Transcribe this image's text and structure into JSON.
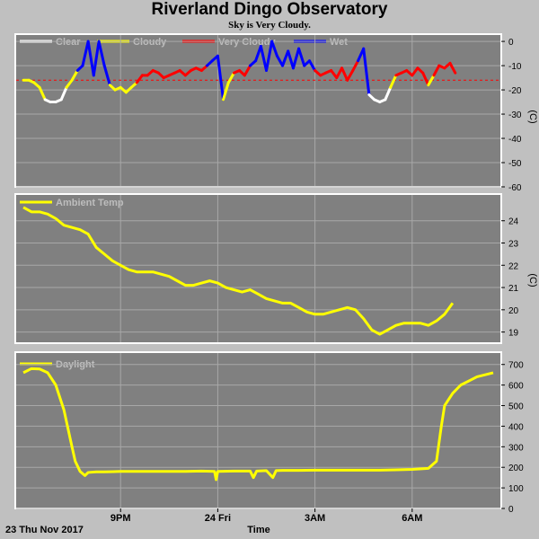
{
  "header": {
    "title": "Riverland Dingo Observatory",
    "subtitle": "Sky is Very Cloudy."
  },
  "colors": {
    "plot_bg": "#808080",
    "frame": "#ffffff",
    "grid": "#a8a8a8",
    "clear": "#ffffff",
    "cloudy": "#ffff00",
    "very_cloudy": "#ff0000",
    "wet": "#0000ff",
    "temp": "#ffff00",
    "daylight": "#ffff00"
  },
  "footer": {
    "date_label": "23 Thu Nov 2017",
    "time_label": "Time"
  },
  "chart_data": [
    {
      "type": "line",
      "title": "",
      "ylabel": "(C)",
      "ylim": [
        -60,
        3
      ],
      "yticks": [
        0,
        -10,
        -20,
        -30,
        -40,
        -50,
        -60
      ],
      "grid": true,
      "legend": [
        "Clear",
        "Cloudy",
        "Very Cloudy",
        "Wet"
      ],
      "threshold": -16,
      "x": [
        18.0,
        18.17,
        18.33,
        18.5,
        18.67,
        18.83,
        19.0,
        19.17,
        19.33,
        19.5,
        19.67,
        19.83,
        20.0,
        20.17,
        20.33,
        20.5,
        20.67,
        20.83,
        21.0,
        21.17,
        21.33,
        21.5,
        21.67,
        21.83,
        22.0,
        22.17,
        22.33,
        22.5,
        22.67,
        22.83,
        23.0,
        23.17,
        23.33,
        23.5,
        23.67,
        23.83,
        24.0,
        24.17,
        24.33,
        24.5,
        24.67,
        24.83,
        25.0,
        25.17,
        25.33,
        25.5,
        25.67,
        25.83,
        26.0,
        26.17,
        26.33,
        26.5,
        26.67,
        26.83,
        27.0,
        27.17,
        27.33,
        27.5,
        27.67,
        27.83,
        28.0,
        28.17,
        28.33,
        28.5,
        28.67,
        28.83,
        29.0,
        29.17,
        29.33,
        29.5,
        29.67,
        29.83,
        30.0,
        30.17,
        30.33,
        30.5,
        30.67,
        30.83,
        31.0,
        31.17,
        31.33
      ],
      "y": [
        -16,
        -16,
        -17,
        -19,
        -24,
        -25,
        -25,
        -24,
        -19,
        -16,
        -12,
        -10,
        0,
        -14,
        0,
        -10,
        -18,
        -20,
        -19,
        -21,
        -19,
        -17,
        -14,
        -14,
        -12,
        -13,
        -15,
        -14,
        -13,
        -12,
        -14,
        -12,
        -11,
        -12,
        -10,
        -8,
        -6,
        -24,
        -17,
        -13,
        -12,
        -14,
        -10,
        -8,
        -2,
        -12,
        0,
        -6,
        -10,
        -4,
        -11,
        -3,
        -10,
        -8,
        -12,
        -14,
        -13,
        -12,
        -15,
        -11,
        -16,
        -12,
        -8,
        -3,
        -22,
        -24,
        -25,
        -24,
        -19,
        -14,
        -13,
        -12,
        -14,
        -11,
        -13,
        -18,
        -14,
        -10,
        -11,
        -9,
        -13
      ],
      "condition": [
        "cloudy",
        "cloudy",
        "cloudy",
        "cloudy",
        "clear",
        "clear",
        "clear",
        "clear",
        "cloudy",
        "cloudy",
        "wet",
        "wet",
        "wet",
        "wet",
        "wet",
        "wet",
        "cloudy",
        "cloudy",
        "cloudy",
        "cloudy",
        "cloudy",
        "very_cloudy",
        "very_cloudy",
        "very_cloudy",
        "very_cloudy",
        "very_cloudy",
        "very_cloudy",
        "very_cloudy",
        "very_cloudy",
        "very_cloudy",
        "very_cloudy",
        "very_cloudy",
        "very_cloudy",
        "very_cloudy",
        "wet",
        "wet",
        "wet",
        "cloudy",
        "cloudy",
        "very_cloudy",
        "very_cloudy",
        "very_cloudy",
        "wet",
        "wet",
        "wet",
        "wet",
        "wet",
        "wet",
        "wet",
        "wet",
        "wet",
        "wet",
        "wet",
        "wet",
        "very_cloudy",
        "very_cloudy",
        "very_cloudy",
        "very_cloudy",
        "very_cloudy",
        "very_cloudy",
        "very_cloudy",
        "very_cloudy",
        "wet",
        "wet",
        "clear",
        "clear",
        "clear",
        "clear",
        "cloudy",
        "very_cloudy",
        "very_cloudy",
        "very_cloudy",
        "very_cloudy",
        "very_cloudy",
        "very_cloudy",
        "cloudy",
        "very_cloudy",
        "very_cloudy",
        "very_cloudy",
        "very_cloudy",
        "very_cloudy"
      ]
    },
    {
      "type": "line",
      "title": "",
      "ylabel": "(C)",
      "ylim": [
        18.5,
        25.2
      ],
      "yticks": [
        19,
        20,
        21,
        22,
        23,
        24
      ],
      "grid": true,
      "legend": [
        "Ambient Temp"
      ],
      "x": [
        18.0,
        18.25,
        18.5,
        18.75,
        19.0,
        19.25,
        19.5,
        19.75,
        20.0,
        20.25,
        20.5,
        20.75,
        21.0,
        21.25,
        21.5,
        21.75,
        22.0,
        22.25,
        22.5,
        22.75,
        23.0,
        23.25,
        23.5,
        23.75,
        24.0,
        24.25,
        24.5,
        24.75,
        25.0,
        25.25,
        25.5,
        25.75,
        26.0,
        26.25,
        26.5,
        26.75,
        27.0,
        27.25,
        27.5,
        27.75,
        28.0,
        28.25,
        28.5,
        28.75,
        29.0,
        29.25,
        29.5,
        29.75,
        30.0,
        30.25,
        30.5,
        30.75,
        31.0,
        31.25
      ],
      "y": [
        24.6,
        24.4,
        24.4,
        24.3,
        24.1,
        23.8,
        23.7,
        23.6,
        23.4,
        22.8,
        22.5,
        22.2,
        22.0,
        21.8,
        21.7,
        21.7,
        21.7,
        21.6,
        21.5,
        21.3,
        21.1,
        21.1,
        21.2,
        21.3,
        21.2,
        21.0,
        20.9,
        20.8,
        20.9,
        20.7,
        20.5,
        20.4,
        20.3,
        20.3,
        20.1,
        19.9,
        19.8,
        19.8,
        19.9,
        20.0,
        20.1,
        20.0,
        19.6,
        19.1,
        18.9,
        19.1,
        19.3,
        19.4,
        19.4,
        19.4,
        19.3,
        19.5,
        19.8,
        20.3
      ]
    },
    {
      "type": "line",
      "title": "",
      "ylabel": "",
      "ylim": [
        0,
        760
      ],
      "yticks": [
        0,
        100,
        200,
        300,
        400,
        500,
        600,
        700
      ],
      "grid": true,
      "legend": [
        "Daylight"
      ],
      "x": [
        18.0,
        18.25,
        18.5,
        18.75,
        19.0,
        19.25,
        19.5,
        19.6,
        19.75,
        19.9,
        20.0,
        20.25,
        20.5,
        21.0,
        21.5,
        22.0,
        22.5,
        23.0,
        23.5,
        23.9,
        23.95,
        24.0,
        24.5,
        25.0,
        25.1,
        25.2,
        25.5,
        25.7,
        25.8,
        26.0,
        26.5,
        27.0,
        27.5,
        28.0,
        28.5,
        29.0,
        29.5,
        30.0,
        30.5,
        30.75,
        30.9,
        31.0,
        31.25,
        31.5,
        31.75,
        32.0,
        32.25,
        32.5
      ],
      "y": [
        660,
        680,
        678,
        660,
        600,
        480,
        300,
        230,
        180,
        160,
        175,
        178,
        178,
        180,
        180,
        180,
        180,
        180,
        182,
        180,
        140,
        180,
        182,
        182,
        150,
        182,
        184,
        150,
        184,
        185,
        185,
        186,
        186,
        186,
        186,
        186,
        188,
        190,
        195,
        230,
        400,
        500,
        560,
        600,
        620,
        640,
        650,
        660
      ]
    }
  ],
  "xaxis": {
    "ticks": [
      {
        "label": "9PM",
        "value": 21
      },
      {
        "label": "24 Fri",
        "value": 24
      },
      {
        "label": "3AM",
        "value": 27
      },
      {
        "label": "6AM",
        "value": 30
      }
    ],
    "xlim": [
      17.75,
      32.75
    ]
  }
}
